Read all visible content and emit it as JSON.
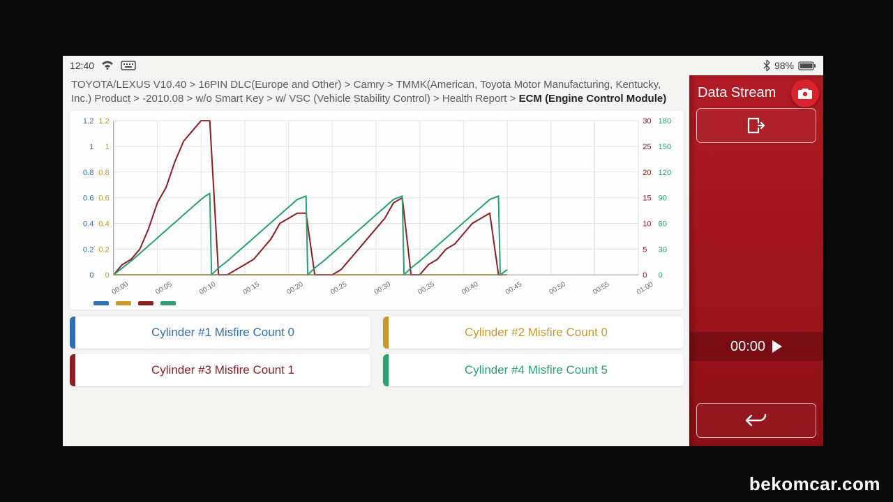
{
  "statusbar": {
    "time": "12:40",
    "battery_pct": "98%",
    "icon_color": "#4a4a4a"
  },
  "breadcrumb": {
    "prefix": "TOYOTA/LEXUS V10.40 > 16PIN DLC(Europe and Other) > Camry > TMMK(American, Toyota Motor Manufacturing, Kentucky, Inc.) Product > -2010.08 > w/o Smart Key > w/ VSC (Vehicle Stability Control) > Health Report > ",
    "current": "ECM (Engine Control Module)"
  },
  "chart": {
    "type": "line",
    "background_color": "#fefefe",
    "grid_color": "#e4e4e4",
    "axis_color": "#9a9a9a",
    "x_labels": [
      "00:00",
      "00:05",
      "00:10",
      "00:15",
      "00:20",
      "00:25",
      "00:30",
      "00:35",
      "00:40",
      "00:45",
      "00:50",
      "00:55",
      "01:00"
    ],
    "x_label_fontsize": 10,
    "y_left_a": {
      "ticks": [
        "0",
        "0.2",
        "0.4",
        "0.6",
        "0.8",
        "1",
        "1.2"
      ],
      "color": "#2f6fb3",
      "max": 1.2
    },
    "y_left_b": {
      "ticks": [
        "0",
        "0.2",
        "0.4",
        "0.6",
        "0.8",
        "1",
        "1.2"
      ],
      "color": "#c79a2a",
      "max": 1.2
    },
    "y_right_a": {
      "ticks": [
        "0",
        "5",
        "10",
        "15",
        "20",
        "25",
        "30"
      ],
      "color": "#8b1f22",
      "max": 30
    },
    "y_right_b": {
      "ticks": [
        "0",
        "30",
        "60",
        "90",
        "120",
        "150",
        "180"
      ],
      "color": "#2aa074",
      "max": 180
    },
    "series": [
      {
        "name": "cyl1",
        "color": "#2f6fb3",
        "axis": "left_a",
        "line_width": 2,
        "points": [
          [
            0,
            0
          ],
          [
            45,
            0
          ]
        ]
      },
      {
        "name": "cyl2",
        "color": "#c79a2a",
        "axis": "left_b",
        "line_width": 2,
        "points": [
          [
            0,
            0
          ],
          [
            45,
            0
          ]
        ]
      },
      {
        "name": "cyl3",
        "color": "#8b1f22",
        "axis": "right_a",
        "line_width": 2,
        "points": [
          [
            0,
            0
          ],
          [
            1,
            2
          ],
          [
            2,
            3
          ],
          [
            3,
            5
          ],
          [
            4,
            9
          ],
          [
            5,
            14
          ],
          [
            6,
            17
          ],
          [
            7,
            22
          ],
          [
            8,
            26
          ],
          [
            9,
            28
          ],
          [
            10,
            30
          ],
          [
            11,
            30
          ],
          [
            12,
            0
          ],
          [
            13,
            0
          ],
          [
            14,
            1
          ],
          [
            15,
            2
          ],
          [
            16,
            3
          ],
          [
            17,
            5
          ],
          [
            18,
            7
          ],
          [
            19,
            10
          ],
          [
            20,
            11
          ],
          [
            21,
            12
          ],
          [
            22,
            12
          ],
          [
            23,
            0
          ],
          [
            24,
            0
          ],
          [
            25,
            0
          ],
          [
            26,
            1
          ],
          [
            27,
            3
          ],
          [
            28,
            5
          ],
          [
            29,
            7
          ],
          [
            30,
            9
          ],
          [
            31,
            11
          ],
          [
            32,
            14
          ],
          [
            33,
            15
          ],
          [
            34,
            0
          ],
          [
            35,
            0
          ],
          [
            36,
            2
          ],
          [
            37,
            3
          ],
          [
            38,
            5
          ],
          [
            39,
            6
          ],
          [
            40,
            8
          ],
          [
            41,
            10
          ],
          [
            42,
            11
          ],
          [
            43,
            12
          ],
          [
            44,
            0
          ],
          [
            44.5,
            0
          ]
        ]
      },
      {
        "name": "cyl4",
        "color": "#2aa074",
        "axis": "right_b",
        "line_width": 2,
        "points": [
          [
            0,
            0
          ],
          [
            1,
            8
          ],
          [
            2,
            16
          ],
          [
            3,
            25
          ],
          [
            4,
            34
          ],
          [
            5,
            43
          ],
          [
            6,
            52
          ],
          [
            7,
            61
          ],
          [
            8,
            70
          ],
          [
            9,
            79
          ],
          [
            10,
            88
          ],
          [
            10.5,
            92
          ],
          [
            11,
            95
          ],
          [
            11.2,
            0
          ],
          [
            12,
            8
          ],
          [
            13,
            16
          ],
          [
            14,
            25
          ],
          [
            15,
            34
          ],
          [
            16,
            43
          ],
          [
            17,
            52
          ],
          [
            18,
            61
          ],
          [
            19,
            70
          ],
          [
            20,
            79
          ],
          [
            21,
            88
          ],
          [
            22,
            92
          ],
          [
            22.2,
            0
          ],
          [
            23,
            8
          ],
          [
            24,
            16
          ],
          [
            25,
            25
          ],
          [
            26,
            34
          ],
          [
            27,
            43
          ],
          [
            28,
            52
          ],
          [
            29,
            61
          ],
          [
            30,
            70
          ],
          [
            31,
            79
          ],
          [
            32,
            88
          ],
          [
            33,
            92
          ],
          [
            33.2,
            0
          ],
          [
            34,
            8
          ],
          [
            35,
            16
          ],
          [
            36,
            25
          ],
          [
            37,
            34
          ],
          [
            38,
            43
          ],
          [
            39,
            52
          ],
          [
            40,
            61
          ],
          [
            41,
            70
          ],
          [
            42,
            79
          ],
          [
            43,
            88
          ],
          [
            44,
            92
          ],
          [
            44.2,
            0
          ],
          [
            45,
            6
          ]
        ]
      }
    ],
    "legend_swatch_colors": [
      "#2f6fb3",
      "#c79a2a",
      "#8b1f22",
      "#2aa074"
    ]
  },
  "cards": [
    {
      "label": "Cylinder #1 Misfire Count 0",
      "color": "#2f6fb3"
    },
    {
      "label": "Cylinder #2 Misfire Count 0",
      "color": "#c79a2a"
    },
    {
      "label": "Cylinder #3 Misfire Count 1",
      "color": "#8b1f22"
    },
    {
      "label": "Cylinder #4 Misfire Count 5",
      "color": "#2aa074"
    }
  ],
  "side": {
    "title": "Data Stream",
    "panel_gradient_top": "#b11b24",
    "panel_gradient_bottom": "#8e0f17",
    "timer": "00:00"
  },
  "watermark": "bekomcar.com"
}
